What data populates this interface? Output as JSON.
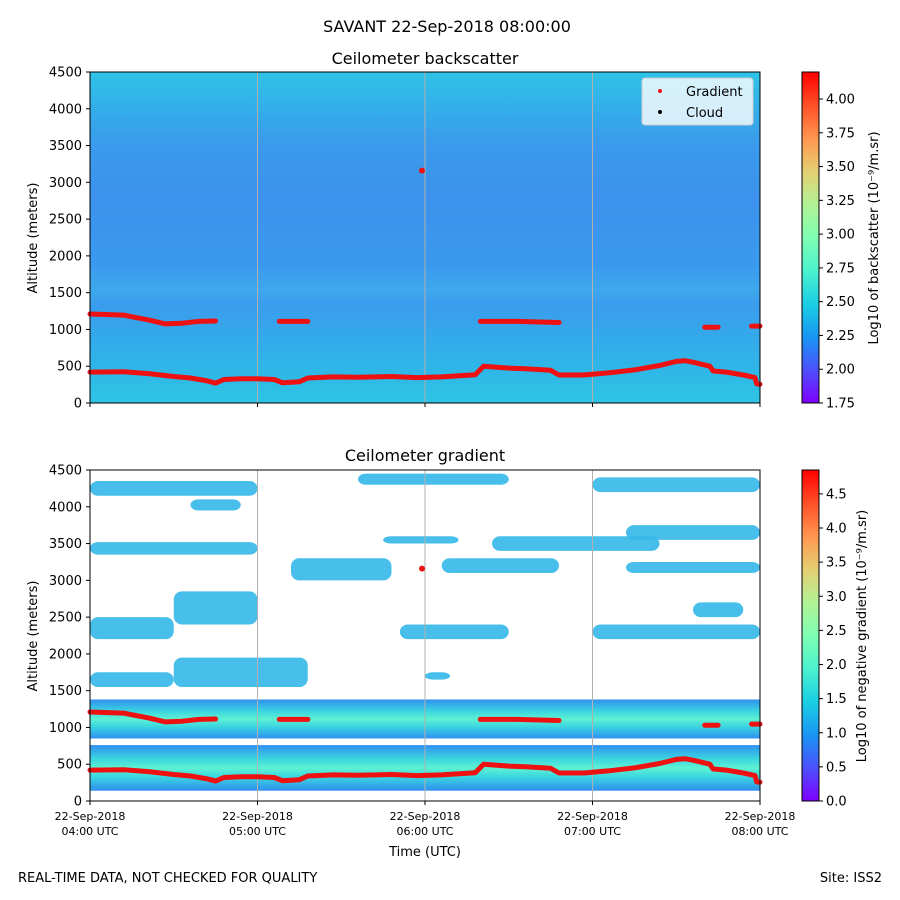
{
  "suptitle": "SAVANT 22-Sep-2018 08:00:00",
  "footer_left": "REAL-TIME DATA, NOT CHECKED FOR QUALITY",
  "footer_right": "Site: ISS2",
  "colors": {
    "gradient_marker": "#ee1111",
    "cloud_marker": "#000000",
    "field_low": "#3c8fe9",
    "field_high": "#2ec4e4",
    "colormap": [
      "#7f00ff",
      "#4c50fc",
      "#1996f3",
      "#1acfe3",
      "#4cf2ce",
      "#7ffeb3",
      "#b2f295",
      "#e5cf72",
      "#ff964f",
      "#ff5028",
      "#ff0000"
    ]
  },
  "chart_data": [
    {
      "type": "heatmap",
      "title": "Ceilometer backscatter",
      "xlabel": "",
      "ylabel": "Altitude (meters)",
      "ylim": [
        0,
        4500
      ],
      "yticks": [
        "0",
        "500",
        "1000",
        "1500",
        "2000",
        "2500",
        "3000",
        "3500",
        "4000",
        "4500"
      ],
      "colorbar": {
        "label": "Log10 of backscatter (10⁻⁹/m.sr)",
        "range": [
          1.75,
          4.2
        ],
        "ticks": [
          "1.75",
          "2.00",
          "2.25",
          "2.50",
          "2.75",
          "3.00",
          "3.25",
          "3.50",
          "3.75",
          "4.00"
        ]
      },
      "legend": {
        "position": "top-right",
        "entries": [
          "Gradient",
          "Cloud"
        ]
      }
    },
    {
      "type": "heatmap",
      "title": "Ceilometer gradient",
      "xlabel": "Time (UTC)",
      "ylabel": "Altitude (meters)",
      "ylim": [
        0,
        4500
      ],
      "yticks": [
        "0",
        "500",
        "1000",
        "1500",
        "2000",
        "2500",
        "3000",
        "3500",
        "4000",
        "4500"
      ],
      "xticks": [
        {
          "date": "22-Sep-2018",
          "time": "04:00 UTC"
        },
        {
          "date": "22-Sep-2018",
          "time": "05:00 UTC"
        },
        {
          "date": "22-Sep-2018",
          "time": "06:00 UTC"
        },
        {
          "date": "22-Sep-2018",
          "time": "07:00 UTC"
        },
        {
          "date": "22-Sep-2018",
          "time": "08:00 UTC"
        }
      ],
      "colorbar": {
        "label": "Log10 of negative gradient (10⁻⁹/m.sr)",
        "range": [
          0,
          4.85
        ],
        "ticks": [
          "0.0",
          "0.5",
          "1.0",
          "1.5",
          "2.0",
          "2.5",
          "3.0",
          "3.5",
          "4.0",
          "4.5"
        ]
      }
    }
  ],
  "series": {
    "time_range_hours": [
      4,
      8
    ],
    "lower_layer": [
      [
        4.0,
        420
      ],
      [
        4.2,
        425
      ],
      [
        4.35,
        400
      ],
      [
        4.5,
        360
      ],
      [
        4.6,
        340
      ],
      [
        4.7,
        300
      ],
      [
        4.75,
        270
      ],
      [
        4.8,
        320
      ],
      [
        4.9,
        330
      ],
      [
        5.0,
        330
      ],
      [
        5.1,
        320
      ],
      [
        5.15,
        275
      ],
      [
        5.25,
        290
      ],
      [
        5.3,
        340
      ],
      [
        5.45,
        355
      ],
      [
        5.6,
        350
      ],
      [
        5.8,
        360
      ],
      [
        5.95,
        345
      ],
      [
        6.1,
        355
      ],
      [
        6.3,
        385
      ],
      [
        6.35,
        500
      ],
      [
        6.5,
        475
      ],
      [
        6.6,
        465
      ],
      [
        6.75,
        445
      ],
      [
        6.8,
        380
      ],
      [
        6.95,
        380
      ],
      [
        7.1,
        410
      ],
      [
        7.25,
        450
      ],
      [
        7.4,
        510
      ],
      [
        7.5,
        565
      ],
      [
        7.55,
        575
      ],
      [
        7.6,
        555
      ],
      [
        7.7,
        500
      ],
      [
        7.72,
        435
      ],
      [
        7.8,
        420
      ],
      [
        7.9,
        380
      ],
      [
        7.97,
        345
      ],
      [
        7.98,
        260
      ],
      [
        8.0,
        255
      ]
    ],
    "upper_layer": [
      [
        [
          4.0,
          1210
        ],
        [
          4.2,
          1195
        ],
        [
          4.35,
          1130
        ],
        [
          4.45,
          1075
        ],
        [
          4.55,
          1085
        ],
        [
          4.65,
          1110
        ],
        [
          4.75,
          1115
        ]
      ],
      [
        [
          5.13,
          1110
        ],
        [
          5.3,
          1110
        ]
      ],
      [
        [
          6.33,
          1110
        ],
        [
          6.55,
          1110
        ],
        [
          6.8,
          1095
        ]
      ],
      [
        [
          7.67,
          1030
        ],
        [
          7.75,
          1030
        ]
      ],
      [
        [
          7.95,
          1045
        ],
        [
          8.0,
          1045
        ]
      ]
    ],
    "isolated_point": [
      6.0,
      3160
    ]
  },
  "gradient_bands": [
    [
      3.35,
      3.52,
      4.0,
      5.0
    ],
    [
      2.2,
      2.5,
      4.0,
      4.5
    ],
    [
      2.4,
      2.85,
      4.5,
      5.0
    ],
    [
      1.55,
      1.75,
      4.0,
      4.5
    ],
    [
      1.55,
      1.95,
      4.5,
      5.3
    ],
    [
      1.65,
      1.75,
      6.0,
      6.15
    ],
    [
      2.2,
      2.4,
      5.85,
      6.5
    ],
    [
      3.5,
      3.6,
      5.75,
      6.2
    ],
    [
      3.0,
      3.3,
      5.2,
      5.8
    ],
    [
      3.1,
      3.3,
      6.1,
      6.8
    ],
    [
      3.4,
      3.6,
      6.4,
      7.4
    ],
    [
      2.2,
      2.4,
      7.0,
      8.0
    ],
    [
      2.5,
      2.7,
      7.6,
      7.9
    ],
    [
      3.1,
      3.25,
      7.2,
      8.0
    ],
    [
      3.55,
      3.75,
      7.2,
      8.0
    ],
    [
      3.95,
      4.1,
      4.6,
      4.9
    ],
    [
      4.15,
      4.35,
      4.0,
      5.0
    ],
    [
      4.2,
      4.4,
      7.0,
      8.0
    ],
    [
      4.3,
      4.45,
      5.6,
      6.5
    ]
  ]
}
